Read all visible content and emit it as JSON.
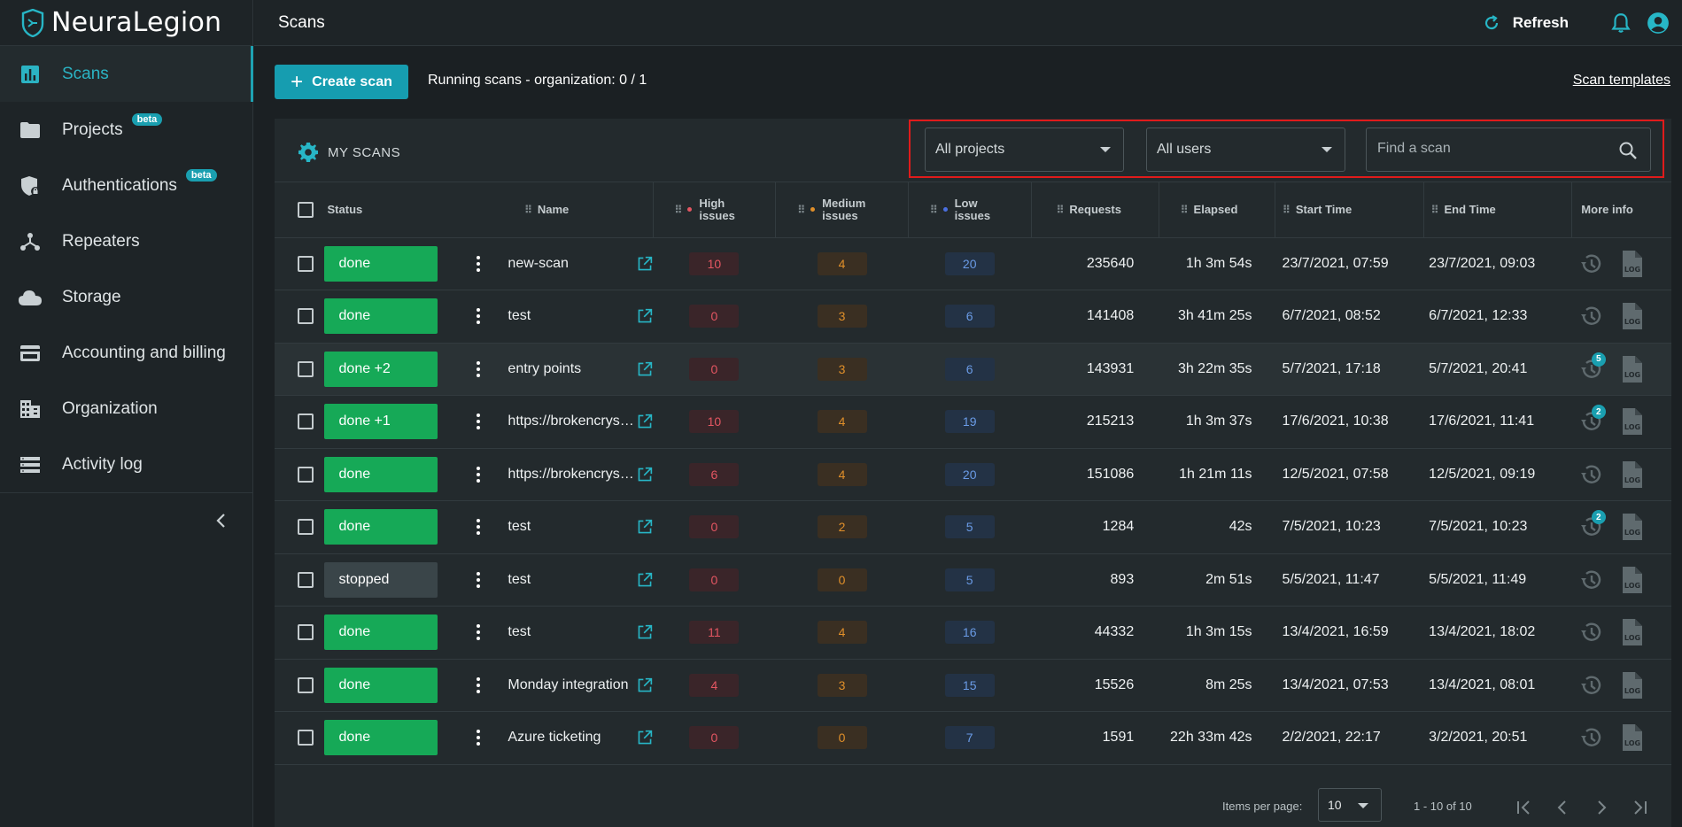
{
  "app": {
    "logo_text": "NeuraLegion",
    "page_title": "Scans"
  },
  "sidebar": {
    "items": [
      {
        "label": "Scans",
        "icon": "bar-chart-icon",
        "active": true
      },
      {
        "label": "Projects",
        "icon": "folder-icon",
        "beta": "beta"
      },
      {
        "label": "Authentications",
        "icon": "shield-lock-icon",
        "beta": "beta"
      },
      {
        "label": "Repeaters",
        "icon": "repeater-icon"
      },
      {
        "label": "Storage",
        "icon": "cloud-icon"
      },
      {
        "label": "Accounting and billing",
        "icon": "credit-card-icon"
      },
      {
        "label": "Organization",
        "icon": "building-icon"
      },
      {
        "label": "Activity log",
        "icon": "list-icon"
      }
    ]
  },
  "topbar": {
    "refresh_label": "Refresh"
  },
  "toolbar": {
    "create_label": "Create scan",
    "running": "Running scans - organization: 0 / 1",
    "templates": "Scan templates"
  },
  "filters": {
    "title": "MY SCANS",
    "projects": "All projects",
    "users": "All users",
    "search_placeholder": "Find a scan"
  },
  "columns": {
    "status": "Status",
    "name": "Name",
    "high": "High issues",
    "medium": "Medium issues",
    "low": "Low issues",
    "requests": "Requests",
    "elapsed": "Elapsed",
    "start": "Start Time",
    "end": "End Time",
    "more": "More info"
  },
  "colors": {
    "accent": "#1ea3b3",
    "done": "#16a957",
    "stopped": "#3a4549",
    "high": "#e45662",
    "medium": "#e08f2a",
    "low": "#6a9be6",
    "highlight": "#e01b1b"
  },
  "rows": [
    {
      "status": "done",
      "name": "new-scan",
      "high": "10",
      "medium": "4",
      "low": "20",
      "requests": "235640",
      "elapsed": "1h 3m 54s",
      "start": "23/7/2021, 07:59",
      "end": "23/7/2021, 09:03",
      "badge": ""
    },
    {
      "status": "done",
      "name": "test",
      "high": "0",
      "medium": "3",
      "low": "6",
      "requests": "141408",
      "elapsed": "3h 41m 25s",
      "start": "6/7/2021, 08:52",
      "end": "6/7/2021, 12:33",
      "badge": ""
    },
    {
      "status": "done +2",
      "name": "entry points",
      "high": "0",
      "medium": "3",
      "low": "6",
      "requests": "143931",
      "elapsed": "3h 22m 35s",
      "start": "5/7/2021, 17:18",
      "end": "5/7/2021, 20:41",
      "badge": "5"
    },
    {
      "status": "done +1",
      "name": "https://brokencrystals.com",
      "high": "10",
      "medium": "4",
      "low": "19",
      "requests": "215213",
      "elapsed": "1h 3m 37s",
      "start": "17/6/2021, 10:38",
      "end": "17/6/2021, 11:41",
      "badge": "2"
    },
    {
      "status": "done",
      "name": "https://brokencrystals.com",
      "high": "6",
      "medium": "4",
      "low": "20",
      "requests": "151086",
      "elapsed": "1h 21m 11s",
      "start": "12/5/2021, 07:58",
      "end": "12/5/2021, 09:19",
      "badge": ""
    },
    {
      "status": "done",
      "name": "test",
      "high": "0",
      "medium": "2",
      "low": "5",
      "requests": "1284",
      "elapsed": "42s",
      "start": "7/5/2021, 10:23",
      "end": "7/5/2021, 10:23",
      "badge": "2"
    },
    {
      "status": "stopped",
      "name": "test",
      "high": "0",
      "medium": "0",
      "low": "5",
      "requests": "893",
      "elapsed": "2m 51s",
      "start": "5/5/2021, 11:47",
      "end": "5/5/2021, 11:49",
      "badge": ""
    },
    {
      "status": "done",
      "name": "test",
      "high": "11",
      "medium": "4",
      "low": "16",
      "requests": "44332",
      "elapsed": "1h 3m 15s",
      "start": "13/4/2021, 16:59",
      "end": "13/4/2021, 18:02",
      "badge": ""
    },
    {
      "status": "done",
      "name": "Monday integration",
      "high": "4",
      "medium": "3",
      "low": "15",
      "requests": "15526",
      "elapsed": "8m 25s",
      "start": "13/4/2021, 07:53",
      "end": "13/4/2021, 08:01",
      "badge": ""
    },
    {
      "status": "done",
      "name": "Azure ticketing",
      "high": "0",
      "medium": "0",
      "low": "7",
      "requests": "1591",
      "elapsed": "22h 33m 42s",
      "start": "2/2/2021, 22:17",
      "end": "3/2/2021, 20:51",
      "badge": ""
    }
  ],
  "pagination": {
    "items_per_page_label": "Items per page:",
    "items_per_page": "10",
    "range": "1 - 10 of 10"
  }
}
